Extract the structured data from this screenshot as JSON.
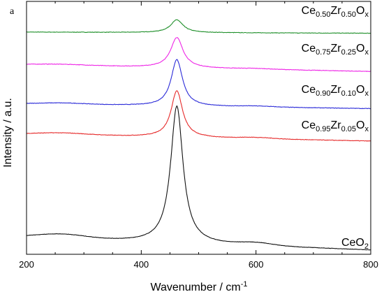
{
  "chart_data": {
    "type": "line",
    "panel_label": "a",
    "xlabel": "Wavenumber / cm",
    "xlabel_sup": "-1",
    "ylabel": "Intensity / a.u.",
    "xlim": [
      200,
      800
    ],
    "x_ticks": [
      200,
      400,
      600,
      800
    ],
    "y_ticks_shown": false,
    "grid": false,
    "legend": "none",
    "series": [
      {
        "label_parts": [
          [
            "Ce",
            ""
          ],
          [
            "0.50",
            "sub"
          ],
          [
            "Zr",
            ""
          ],
          [
            "0.50",
            "sub"
          ],
          [
            "O",
            ""
          ],
          [
            "x",
            "sub"
          ]
        ],
        "color": "#1f8f2a",
        "baseline": [
          0.94,
          0.935
        ],
        "peak_height": 0.055,
        "peak_width": 13,
        "noise": 0.002,
        "shoulder": 0.0
      },
      {
        "label_parts": [
          [
            "Ce",
            ""
          ],
          [
            "0.75",
            "sub"
          ],
          [
            "Zr",
            ""
          ],
          [
            "0.25",
            "sub"
          ],
          [
            "O",
            ""
          ],
          [
            "x",
            "sub"
          ]
        ],
        "color": "#ee26e6",
        "baseline": [
          0.8,
          0.77
        ],
        "peak_height": 0.13,
        "peak_width": 13,
        "noise": 0.002,
        "shoulder": 0.004
      },
      {
        "label_parts": [
          [
            "Ce",
            ""
          ],
          [
            "0.90",
            "sub"
          ],
          [
            "Zr",
            ""
          ],
          [
            "0.10",
            "sub"
          ],
          [
            "O",
            ""
          ],
          [
            "x",
            "sub"
          ]
        ],
        "color": "#2b2bd8",
        "baseline": [
          0.63,
          0.61
        ],
        "peak_height": 0.2,
        "peak_width": 12,
        "noise": 0.002,
        "shoulder": 0.006
      },
      {
        "label_parts": [
          [
            "Ce",
            ""
          ],
          [
            "0.95",
            "sub"
          ],
          [
            "Zr",
            ""
          ],
          [
            "0.05",
            "sub"
          ],
          [
            "O",
            ""
          ],
          [
            "x",
            "sub"
          ]
        ],
        "color": "#e62b2b",
        "baseline": [
          0.5,
          0.47
        ],
        "peak_height": 0.2,
        "peak_width": 12,
        "noise": 0.002,
        "shoulder": 0.008
      },
      {
        "label_parts": [
          [
            "CeO",
            ""
          ],
          [
            "2",
            "sub"
          ]
        ],
        "color": "#111111",
        "baseline": [
          0.055,
          0.0
        ],
        "peak_height": 0.59,
        "peak_width": 13,
        "noise": 0.0015,
        "shoulder": 0.018
      }
    ]
  }
}
